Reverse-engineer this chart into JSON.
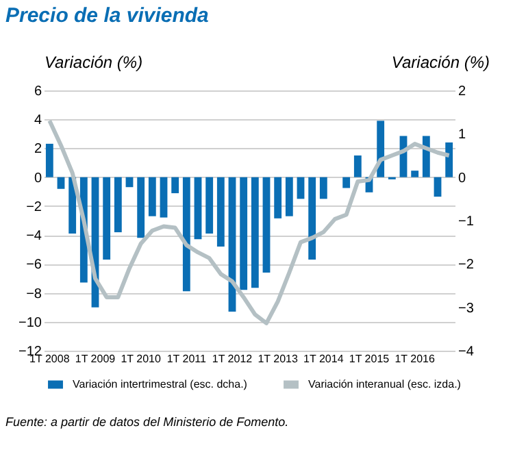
{
  "chart_data": {
    "type": "bar",
    "title": "Precio de la vivienda",
    "ylabel": "Variación (%)",
    "y2label": "Variación (%)",
    "categories": [
      "1T 2008",
      null,
      null,
      null,
      "1T 2009",
      null,
      null,
      null,
      "1T 2010",
      null,
      null,
      null,
      "1T 2011",
      null,
      null,
      null,
      "1T 2012",
      null,
      null,
      null,
      "1T 2013",
      null,
      null,
      null,
      "1T 2014",
      null,
      null,
      null,
      "1T 2015",
      null,
      null,
      null,
      "1T 2016",
      null,
      null,
      null
    ],
    "series": [
      {
        "name": "Variación intertrimestral (esc. dcha.)",
        "axis": "y2",
        "color": "#0a6eb4",
        "values": [
          0.77,
          -0.27,
          -1.3,
          -2.43,
          -3.0,
          -1.9,
          -1.27,
          -0.23,
          -1.4,
          -0.9,
          -0.93,
          -0.37,
          -2.63,
          -1.43,
          -1.3,
          -1.6,
          -3.1,
          -2.6,
          -2.55,
          -2.2,
          -0.95,
          -0.9,
          -0.5,
          -1.9,
          -0.5,
          0.0,
          -0.25,
          0.5,
          -0.35,
          1.3,
          -0.05,
          0.95,
          0.15,
          0.95,
          -0.45,
          0.8
        ]
      },
      {
        "name": "Variación interanual (esc. izda.)",
        "type": "line",
        "color": "#b4c0c4",
        "values": [
          3.9,
          2.2,
          0.3,
          -3.0,
          -7.0,
          -8.3,
          -8.3,
          -6.3,
          -4.6,
          -3.7,
          -3.4,
          -3.5,
          -4.7,
          -5.2,
          -5.6,
          -6.7,
          -7.2,
          -8.3,
          -9.5,
          -10.1,
          -8.6,
          -6.6,
          -4.5,
          -4.2,
          -3.8,
          -2.9,
          -2.6,
          -0.3,
          -0.2,
          1.2,
          1.5,
          1.8,
          2.3,
          2.0,
          1.7,
          1.5
        ]
      }
    ],
    "ylim": [
      -12,
      6
    ],
    "yticks": [
      -12,
      -10,
      -8,
      -6,
      -4,
      -2,
      0,
      2,
      4,
      6
    ],
    "y2lim": [
      -4,
      2
    ],
    "y2ticks": [
      -4,
      -3,
      -2,
      -1,
      0,
      1,
      2
    ],
    "grid": "y",
    "legend": "bottom",
    "line_style": "solid",
    "marker": "none",
    "annotations": [
      "Fuente: a partir de datos del Ministerio de Fomento."
    ]
  }
}
